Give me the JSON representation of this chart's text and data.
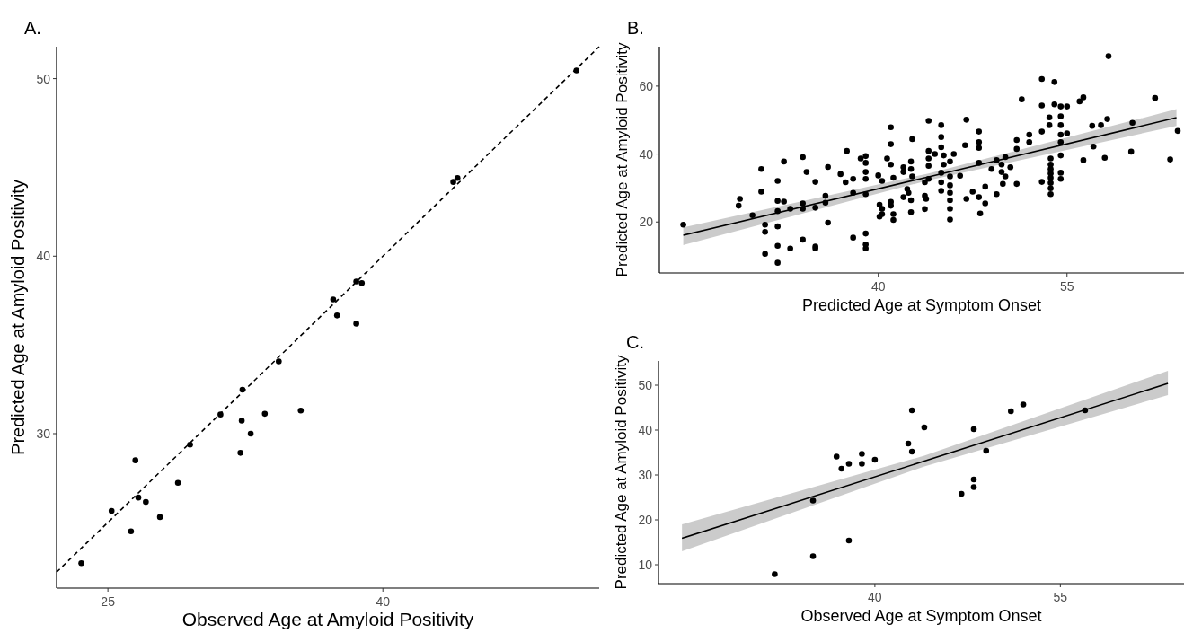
{
  "chart_data": [
    {
      "type": "scatter",
      "title": "A.",
      "xlabel": "Observed Age at Amyloid Positivity",
      "ylabel": "Predicted Age at Amyloid Positivity",
      "xlim": [
        22.2,
        51.8
      ],
      "ylim": [
        21.3,
        51.8
      ],
      "xticks": [
        25,
        40
      ],
      "yticks": [
        30,
        40,
        50
      ],
      "marker": "circle",
      "series": [
        {
          "color": "#000000",
          "x": [
            23.55,
            25.2,
            26.26,
            26.5,
            26.66,
            27.07,
            27.84,
            28.82,
            29.48,
            31.14,
            32.23,
            32.3,
            32.34,
            32.79,
            33.56,
            34.32,
            35.52,
            37.29,
            37.5,
            38.55,
            38.55,
            38.85,
            43.84,
            44.07,
            50.56
          ],
          "values": [
            22.7,
            25.65,
            24.5,
            28.5,
            26.4,
            26.15,
            25.3,
            27.23,
            29.38,
            31.08,
            28.92,
            30.73,
            32.48,
            30.0,
            31.12,
            34.07,
            31.3,
            37.56,
            36.66,
            38.57,
            36.2,
            38.48,
            44.18,
            44.4,
            50.46
          ]
        },
        {
          "type": "line",
          "color": "#000000",
          "marker": "none",
          "line_style": "dashed",
          "x": [
            22.2,
            51.8
          ],
          "values": [
            22.2,
            51.8
          ]
        }
      ]
    },
    {
      "type": "scatter",
      "title": "B.",
      "xlabel": "Predicted Age at Symptom Onset",
      "ylabel": "Predicted Age at Amyloid Positivity",
      "xlim": [
        22.6,
        64.3
      ],
      "ylim": [
        5,
        71.6
      ],
      "xticks": [
        40,
        55
      ],
      "yticks": [
        20,
        40,
        60
      ],
      "marker": "circle",
      "series": [
        {
          "color": "#000000",
          "x": [
            24.5,
            29.0,
            28.9,
            30.0,
            30.7,
            30.7,
            31.0,
            31.0,
            31.0,
            32.0,
            32.0,
            32.0,
            32.0,
            32.0,
            32.0,
            32.5,
            32.5,
            33.0,
            33.0,
            34.0,
            34.0,
            34.0,
            34.0,
            34.3,
            35.0,
            35.0,
            35.0,
            35.0,
            35.8,
            35.8,
            36.0,
            36.0,
            37.0,
            37.4,
            37.5,
            38.0,
            38.0,
            38.0,
            38.6,
            39.0,
            39.0,
            39.0,
            39.0,
            39.0,
            39.0,
            39.0,
            39.0,
            40.0,
            40.1,
            40.1,
            40.3,
            40.3,
            40.3,
            40.7,
            41.0,
            41.0,
            41.0,
            41.0,
            41.0,
            41.2,
            41.2,
            41.2,
            42.0,
            42.0,
            42.0,
            42.3,
            42.4,
            42.6,
            42.6,
            42.6,
            42.6,
            42.7,
            42.7,
            44.0,
            44.0,
            44.0,
            44.0,
            44.0,
            43.7,
            43.7,
            43.7,
            43.8,
            44.5,
            45.0,
            45.0,
            45.0,
            45.0,
            45.0,
            45.0,
            45.2,
            45.2,
            45.7,
            45.7,
            45.7,
            45.7,
            45.7,
            45.7,
            45.7,
            46.0,
            46.5,
            47.0,
            46.9,
            47.0,
            47.5,
            48.0,
            48.0,
            48.0,
            48.0,
            48.0,
            48.1,
            48.5,
            48.5,
            49.0,
            49.4,
            49.4,
            49.8,
            49.8,
            50.1,
            50.1,
            49.9,
            50.5,
            51.0,
            51.0,
            51.0,
            51.4,
            52.0,
            52.0,
            53.0,
            53.0,
            53.0,
            53.0,
            53.6,
            53.6,
            53.7,
            53.7,
            53.7,
            53.7,
            53.7,
            53.7,
            53.7,
            53.7,
            54.0,
            54.0,
            54.5,
            54.5,
            54.5,
            54.5,
            54.5,
            54.5,
            54.5,
            54.5,
            55.0,
            55.0,
            56.0,
            56.3,
            56.3,
            57.0,
            57.1,
            57.7,
            58.0,
            58.2,
            58.3,
            60.1,
            60.2,
            62.0,
            63.2,
            63.8
          ],
          "values": [
            19.2,
            26.8,
            24.8,
            22.0,
            35.6,
            28.9,
            19.2,
            17.1,
            10.6,
            32.1,
            26.2,
            23.2,
            18.7,
            13.0,
            8.0,
            37.8,
            26.0,
            23.9,
            12.2,
            39.1,
            25.5,
            23.9,
            14.8,
            34.7,
            31.8,
            24.2,
            12.8,
            12.2,
            27.7,
            25.7,
            36.2,
            19.8,
            34.1,
            31.7,
            40.9,
            32.7,
            28.6,
            15.4,
            38.7,
            39.4,
            37.4,
            34.7,
            32.7,
            28.2,
            16.6,
            13.4,
            12.2,
            33.7,
            25.1,
            21.6,
            32.1,
            23.9,
            22.3,
            38.7,
            47.9,
            42.9,
            36.9,
            24.8,
            25.9,
            33.0,
            22.3,
            20.6,
            36.1,
            34.7,
            27.3,
            29.7,
            28.6,
            37.8,
            35.6,
            26.4,
            22.9,
            44.4,
            33.4,
            49.8,
            40.9,
            38.7,
            36.5,
            32.7,
            31.7,
            27.7,
            23.8,
            26.8,
            40.0,
            48.5,
            45.0,
            42.0,
            34.5,
            31.7,
            29.2,
            39.6,
            36.9,
            37.8,
            33.4,
            30.8,
            28.6,
            26.4,
            23.9,
            20.7,
            40.0,
            33.6,
            50.1,
            42.6,
            26.8,
            28.9,
            46.6,
            43.5,
            41.8,
            37.4,
            27.3,
            22.5,
            30.4,
            25.5,
            35.6,
            38.2,
            28.2,
            36.9,
            34.7,
            39.1,
            33.4,
            31.2,
            36.1,
            44.1,
            41.5,
            31.2,
            56.1,
            45.7,
            43.5,
            62.1,
            54.3,
            46.6,
            31.8,
            50.8,
            48.5,
            38.7,
            36.9,
            35.6,
            34.3,
            33.0,
            31.5,
            29.9,
            28.2,
            61.2,
            54.6,
            54.0,
            51.1,
            48.5,
            45.7,
            43.5,
            39.6,
            34.5,
            32.7,
            54.0,
            46.1,
            55.5,
            56.7,
            38.2,
            48.3,
            42.2,
            48.5,
            38.9,
            50.3,
            68.8,
            40.7,
            49.2,
            56.5,
            38.4,
            46.8
          ]
        },
        {
          "type": "line",
          "color": "#000000",
          "marker": "none",
          "line_style": "solid",
          "x": [
            24.5,
            44.0,
            63.7
          ],
          "values": [
            16.1,
            33.3,
            50.7
          ],
          "lower": [
            13.2,
            32.3,
            48.3
          ],
          "upper": [
            18.4,
            34.3,
            53.2
          ]
        }
      ]
    },
    {
      "type": "scatter",
      "title": "C.",
      "xlabel": "Observed Age at Symptom Onset",
      "ylabel": "Predicted Age at Amyloid Positivity",
      "xlim": [
        22.5,
        65.0
      ],
      "ylim": [
        5.8,
        55.4
      ],
      "xticks": [
        40,
        55
      ],
      "yticks": [
        10,
        20,
        30,
        40,
        50
      ],
      "marker": "circle",
      "series": [
        {
          "color": "#000000",
          "x": [
            31.9,
            35.0,
            35.0,
            36.9,
            37.3,
            37.9,
            37.9,
            38.95,
            38.95,
            40.0,
            42.7,
            43.0,
            43.0,
            44.0,
            47.0,
            48.0,
            48.0,
            48.0,
            49.0,
            51.0,
            52.0,
            57.0
          ],
          "values": [
            7.9,
            24.3,
            11.9,
            34.1,
            31.4,
            32.5,
            15.4,
            34.7,
            32.5,
            33.4,
            37.0,
            44.4,
            35.2,
            40.6,
            25.8,
            40.2,
            29.0,
            27.3,
            35.4,
            44.2,
            45.7,
            44.4
          ]
        },
        {
          "type": "line",
          "color": "#000000",
          "marker": "none",
          "line_style": "solid",
          "x": [
            24.4,
            44.0,
            63.7
          ],
          "values": [
            15.9,
            33.1,
            50.4
          ],
          "lower": [
            13.0,
            31.9,
            47.8
          ],
          "upper": [
            19.0,
            34.3,
            53.2
          ]
        }
      ]
    }
  ]
}
